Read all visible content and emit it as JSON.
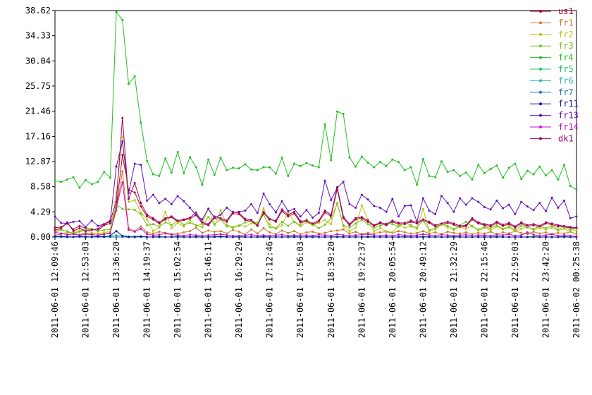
{
  "chart_data": {
    "type": "line",
    "categories": [
      "2011-06-01 12:09:46",
      null,
      null,
      null,
      null,
      "2011-06-01 12:53:03",
      null,
      null,
      null,
      null,
      "2011-06-01 13:36:20",
      null,
      null,
      null,
      null,
      "2011-06-01 14:19:37",
      null,
      null,
      null,
      null,
      "2011-06-01 15:02:54",
      null,
      null,
      null,
      null,
      "2011-06-01 15:46:11",
      null,
      null,
      null,
      null,
      "2011-06-01 16:29:29",
      null,
      null,
      null,
      null,
      "2011-06-01 17:12:46",
      null,
      null,
      null,
      null,
      "2011-06-01 17:56:03",
      null,
      null,
      null,
      null,
      "2011-06-01 18:39:20",
      null,
      null,
      null,
      null,
      "2011-06-01 19:22:37",
      null,
      null,
      null,
      null,
      "2011-06-01 20:05:54",
      null,
      null,
      null,
      null,
      "2011-06-01 20:49:12",
      null,
      null,
      null,
      null,
      "2011-06-01 21:32:29",
      null,
      null,
      null,
      null,
      "2011-06-01 22:15:46",
      null,
      null,
      null,
      null,
      "2011-06-01 22:59:03",
      null,
      null,
      null,
      null,
      "2011-06-01 23:42:20",
      null,
      null,
      null,
      null,
      "2011-06-02 00:25:38"
    ],
    "ylim": [
      0,
      38.62
    ],
    "yticks": [
      {
        "value": 0,
        "label": "0.00"
      },
      4.29,
      8.58,
      12.87,
      17.16,
      21.46,
      25.75,
      30.04,
      34.33,
      38.62
    ],
    "series": [
      {
        "name": "us1",
        "color": "#b00020",
        "values": [
          1.6,
          1.7,
          2.3,
          1.3,
          1.9,
          1.5,
          1.3,
          1.1,
          2.0,
          2.3,
          5.0,
          14.0,
          8.0,
          7.6,
          5.2,
          3.5,
          3.0,
          2.3,
          3.0,
          3.4,
          2.6,
          2.9,
          3.1,
          3.8,
          2.3,
          2.0,
          3.2,
          3.0,
          2.6,
          4.0,
          3.9,
          2.9,
          2.7,
          1.9,
          4.3,
          3.1,
          2.6,
          4.4,
          3.5,
          4.0,
          2.5,
          2.6,
          2.1,
          2.6,
          4.2,
          3.5,
          8.2,
          3.2,
          2.0,
          3.0,
          3.2,
          2.6,
          1.9,
          2.3,
          2.0,
          2.6,
          2.2,
          2.2,
          2.6,
          2.3,
          2.8,
          2.4,
          1.8,
          2.1,
          2.4,
          2.1,
          1.7,
          1.8,
          3.0,
          2.3,
          2.0,
          1.8,
          2.4,
          1.9,
          2.2,
          1.6,
          2.3,
          1.8,
          2.0,
          1.7,
          2.3,
          2.1,
          1.8,
          1.7,
          1.6,
          1.4
        ]
      },
      {
        "name": "fr1",
        "color": "#c87828",
        "values": [
          0.3,
          0.5,
          0.8,
          0.6,
          0.4,
          0.7,
          0.5,
          0.6,
          0.4,
          0.8,
          4.5,
          11.2,
          1.5,
          1.0,
          1.8,
          0.8,
          0.6,
          0.9,
          0.7,
          0.5,
          0.6,
          0.8,
          1.0,
          1.6,
          0.7,
          1.1,
          0.9,
          1.0,
          0.6,
          1.2,
          0.9,
          0.4,
          1.3,
          0.6,
          1.5,
          0.8,
          0.5,
          1.1,
          0.7,
          1.0,
          0.5,
          0.8,
          0.9,
          0.6,
          0.7,
          1.0,
          1.1,
          1.3,
          0.6,
          0.9,
          0.5,
          0.7,
          0.6,
          0.8,
          0.9,
          0.7,
          1.0,
          0.8,
          0.6,
          0.7,
          1.0,
          0.6,
          0.8,
          0.5,
          0.9,
          0.7,
          0.6,
          0.8,
          0.5,
          0.7,
          0.6,
          0.9,
          0.5,
          0.8,
          0.6,
          1.0,
          0.7,
          0.5,
          0.9,
          0.6,
          0.8,
          0.5,
          0.7,
          0.6,
          0.9,
          0.5
        ]
      },
      {
        "name": "fr2",
        "color": "#b8c810",
        "values": [
          1.0,
          1.4,
          0.9,
          0.7,
          1.1,
          1.3,
          0.7,
          0.5,
          0.8,
          0.9,
          7.5,
          17.0,
          6.0,
          6.3,
          4.2,
          3.0,
          1.0,
          1.6,
          4.3,
          1.5,
          2.4,
          1.8,
          2.9,
          1.9,
          2.2,
          4.9,
          2.0,
          4.6,
          2.1,
          1.7,
          2.0,
          1.8,
          2.3,
          2.1,
          4.9,
          2.2,
          1.4,
          2.0,
          4.3,
          2.6,
          1.8,
          2.5,
          2.0,
          2.4,
          2.9,
          2.2,
          5.8,
          1.8,
          1.0,
          1.6,
          5.4,
          3.0,
          1.0,
          1.5,
          1.0,
          0.8,
          2.0,
          1.6,
          1.8,
          1.4,
          4.8,
          1.0,
          1.3,
          2.1,
          1.6,
          1.2,
          1.8,
          1.4,
          1.9,
          1.1,
          1.5,
          1.2,
          1.8,
          1.3,
          1.6,
          1.0,
          1.4,
          1.7,
          1.2,
          1.5,
          1.3,
          1.6,
          1.1,
          1.4,
          0.9,
          1.2
        ]
      },
      {
        "name": "fr3",
        "color": "#78c020",
        "values": [
          0.8,
          1.2,
          1.0,
          0.6,
          0.9,
          1.1,
          1.4,
          1.0,
          1.2,
          1.3,
          5.5,
          4.8,
          4.7,
          4.6,
          3.9,
          2.0,
          2.2,
          1.8,
          2.5,
          2.0,
          2.8,
          2.1,
          2.4,
          2.0,
          1.7,
          3.4,
          2.2,
          3.0,
          1.8,
          1.6,
          1.9,
          2.5,
          2.7,
          2.4,
          3.8,
          1.7,
          1.5,
          2.6,
          1.9,
          2.6,
          2.0,
          3.0,
          2.2,
          1.5,
          2.1,
          3.2,
          5.7,
          2.0,
          1.6,
          2.3,
          2.9,
          2.2,
          1.6,
          1.9,
          2.3,
          2.2,
          1.8,
          2.4,
          2.0,
          1.6,
          2.8,
          1.2,
          1.5,
          2.3,
          1.9,
          1.4,
          2.0,
          2.6,
          1.8,
          1.3,
          1.7,
          1.5,
          2.0,
          1.4,
          1.8,
          1.2,
          1.9,
          1.6,
          1.4,
          1.8,
          1.5,
          1.9,
          1.3,
          1.7,
          1.2,
          1.5
        ]
      },
      {
        "name": "fr4",
        "color": "#20c020",
        "values": [
          9.6,
          9.4,
          9.8,
          10.2,
          8.4,
          9.7,
          9.0,
          9.4,
          11.1,
          10.1,
          38.4,
          37.0,
          26.1,
          27.4,
          19.5,
          13.0,
          10.7,
          10.4,
          13.4,
          11.0,
          14.5,
          10.9,
          13.6,
          11.9,
          8.9,
          13.2,
          10.6,
          13.5,
          11.4,
          11.8,
          11.7,
          12.4,
          11.5,
          11.4,
          11.9,
          11.9,
          10.8,
          13.5,
          10.4,
          12.5,
          12.1,
          12.6,
          12.2,
          11.9,
          19.2,
          13.1,
          21.4,
          21.0,
          13.6,
          12.0,
          13.7,
          12.7,
          11.9,
          12.8,
          12.1,
          13.2,
          12.8,
          11.4,
          11.9,
          8.9,
          13.3,
          10.4,
          10.2,
          12.9,
          11.1,
          11.4,
          10.4,
          11.0,
          9.8,
          12.3,
          10.9,
          11.6,
          12.2,
          10.1,
          11.8,
          12.5,
          9.9,
          11.3,
          10.7,
          12.0,
          10.5,
          11.4,
          9.8,
          12.3,
          8.7,
          8.1
        ]
      },
      {
        "name": "fr5",
        "color": "#20c068",
        "values": [
          0.1,
          0.1,
          0.1,
          0,
          0.1,
          0.1,
          0,
          0.1,
          0.1,
          0.1,
          0.3,
          0.2,
          0.1,
          0.1,
          0.1,
          0,
          0,
          0.1,
          0,
          0,
          0.1,
          0,
          0,
          0.1,
          0,
          0,
          0.1,
          0,
          0,
          0,
          0.1,
          0,
          0,
          0,
          0.1,
          0,
          0,
          0,
          0,
          0.1,
          0,
          0,
          0.1,
          0,
          0,
          0,
          0.1,
          0,
          0,
          0,
          0,
          0.1,
          0,
          0,
          0,
          0,
          0,
          0.1,
          0,
          0,
          0.1,
          0,
          0,
          0,
          0,
          0.1,
          0,
          0,
          0,
          0,
          0,
          0,
          0.1,
          0,
          0,
          0,
          0,
          0,
          0.1,
          0,
          0,
          0,
          0,
          0.1,
          0,
          0
        ]
      },
      {
        "name": "fr6",
        "color": "#20c0a8",
        "values": [
          0,
          0,
          0,
          0,
          0,
          0,
          0,
          0,
          0,
          0,
          0,
          0,
          0,
          0,
          0,
          0,
          0,
          0,
          0,
          0,
          0,
          0,
          0,
          0,
          0,
          0,
          0,
          0,
          0,
          0,
          0,
          0,
          0,
          0,
          0,
          0,
          0,
          0,
          0,
          0,
          0,
          0,
          0,
          0,
          0,
          0,
          0,
          0,
          0,
          0,
          0,
          0,
          0,
          0,
          0,
          0,
          0,
          0,
          0,
          0,
          0,
          0,
          0,
          0,
          0,
          0,
          0,
          0,
          0,
          0,
          0,
          0,
          0,
          0,
          0,
          0,
          0,
          0,
          0,
          0,
          0,
          0,
          0,
          0,
          0,
          0
        ]
      },
      {
        "name": "fr7",
        "color": "#2078c0",
        "values": [
          0,
          0,
          0,
          0,
          0,
          0,
          0,
          0,
          0,
          0,
          0,
          0,
          0,
          0,
          0,
          0,
          0,
          0,
          0,
          0,
          0,
          0,
          0,
          0,
          0,
          0,
          0,
          0,
          0,
          0,
          0,
          0,
          0,
          0,
          0,
          0,
          0,
          0,
          0,
          0,
          0,
          0,
          0,
          0,
          0,
          0,
          0,
          0,
          0,
          0,
          0,
          0,
          0,
          0,
          0,
          0,
          0,
          0,
          0,
          0,
          0,
          0,
          0,
          0,
          0,
          0,
          0,
          0,
          0,
          0,
          0,
          0,
          0,
          0,
          0,
          0,
          0,
          0,
          0,
          0,
          0,
          0,
          0,
          0,
          0,
          0
        ]
      },
      {
        "name": "fr11",
        "color": "#1010a0",
        "values": [
          0.1,
          0.1,
          0,
          0,
          0.1,
          0,
          0,
          0.1,
          0,
          0.2,
          1.0,
          0.2,
          0,
          0,
          0.1,
          0,
          0,
          0,
          0,
          0,
          0,
          0,
          0,
          0,
          0,
          0,
          0,
          0.1,
          0,
          0,
          0,
          0,
          0,
          0,
          0,
          0,
          0,
          0,
          0,
          0,
          0,
          0,
          0,
          0,
          0,
          0,
          0,
          0,
          0,
          0,
          0,
          0,
          0,
          0,
          0,
          0,
          0,
          0,
          0,
          0,
          0,
          0,
          0,
          0,
          0,
          0,
          0,
          0,
          0,
          0,
          0,
          0,
          0,
          0,
          0,
          0,
          0,
          0,
          0,
          0,
          0,
          0,
          0,
          0,
          0,
          0
        ]
      },
      {
        "name": "fr13",
        "color": "#6010c0",
        "values": [
          3.5,
          2.4,
          2.3,
          2.6,
          2.7,
          1.7,
          2.8,
          1.9,
          2.2,
          2.6,
          12.0,
          16.3,
          7.5,
          12.5,
          12.3,
          6.2,
          7.2,
          5.8,
          6.5,
          5.6,
          7.0,
          6.1,
          5.0,
          3.7,
          3.0,
          4.8,
          3.3,
          3.8,
          5.0,
          4.2,
          4.3,
          4.5,
          5.6,
          4.1,
          7.4,
          5.6,
          4.2,
          6.1,
          4.4,
          4.8,
          3.5,
          4.6,
          3.3,
          4.1,
          9.6,
          6.3,
          8.4,
          9.4,
          5.6,
          5.0,
          7.2,
          6.4,
          5.3,
          5.0,
          4.3,
          6.5,
          3.5,
          5.3,
          5.4,
          2.6,
          6.6,
          4.5,
          3.9,
          7.0,
          5.8,
          4.3,
          6.6,
          5.5,
          6.6,
          6.0,
          5.1,
          4.7,
          6.2,
          4.9,
          5.5,
          3.9,
          6.0,
          5.2,
          4.6,
          5.8,
          4.4,
          6.7,
          5.0,
          6.2,
          3.2,
          3.5
        ]
      },
      {
        "name": "fr14",
        "color": "#c010c0",
        "values": [
          0.8,
          0.6,
          0.4,
          0.5,
          0.3,
          0.5,
          0.4,
          0.3,
          0.5,
          0.6,
          5.0,
          9.3,
          1.2,
          0.9,
          1.4,
          0.5,
          0.3,
          0.4,
          0.6,
          0.4,
          0.3,
          0.2,
          0.4,
          0.3,
          0.2,
          0.3,
          0.4,
          0.5,
          0.3,
          0.2,
          0.2,
          0.3,
          0.4,
          0.2,
          0.3,
          0.2,
          0.3,
          0.4,
          0.2,
          0.3,
          0.2,
          0.3,
          0.2,
          0.4,
          0.3,
          0.2,
          0.5,
          0.3,
          0.2,
          0.3,
          0.4,
          0.5,
          0.3,
          0.2,
          0.3,
          0.2,
          0.4,
          0.3,
          0.2,
          0.3,
          0.5,
          0.3,
          0.2,
          0.4,
          0.3,
          0.2,
          0.3,
          0.4,
          0.2,
          0.3,
          0.3,
          0.2,
          0.4,
          0.3,
          0.5,
          0.2,
          0.3,
          0.8,
          0.4,
          0.2,
          0.3,
          0.5,
          0.2,
          0.3,
          0.2,
          0.1
        ]
      },
      {
        "name": "dk1",
        "color": "#a00068",
        "values": [
          1.2,
          1.5,
          2.5,
          1.0,
          1.5,
          1.0,
          1.2,
          1.4,
          2.2,
          2.8,
          6.0,
          20.3,
          6.5,
          9.2,
          5.8,
          3.8,
          3.2,
          2.5,
          3.2,
          3.5,
          2.8,
          3.0,
          3.3,
          4.2,
          2.5,
          2.2,
          3.5,
          3.2,
          2.8,
          4.3,
          4.1,
          3.1,
          2.9,
          2.0,
          4.1,
          3.0,
          2.8,
          4.7,
          3.8,
          4.3,
          2.7,
          2.8,
          2.3,
          2.8,
          4.5,
          3.8,
          8.5,
          3.5,
          2.2,
          3.2,
          3.4,
          2.8,
          2.0,
          2.5,
          2.2,
          2.8,
          2.4,
          2.4,
          2.8,
          2.5,
          3.0,
          2.6,
          2.0,
          2.3,
          2.6,
          2.3,
          1.9,
          2.0,
          3.2,
          2.5,
          2.2,
          2.0,
          2.6,
          2.1,
          2.4,
          1.8,
          2.5,
          2.0,
          2.2,
          1.9,
          2.5,
          2.3,
          2.0,
          1.9,
          1.7,
          1.6
        ]
      }
    ]
  }
}
